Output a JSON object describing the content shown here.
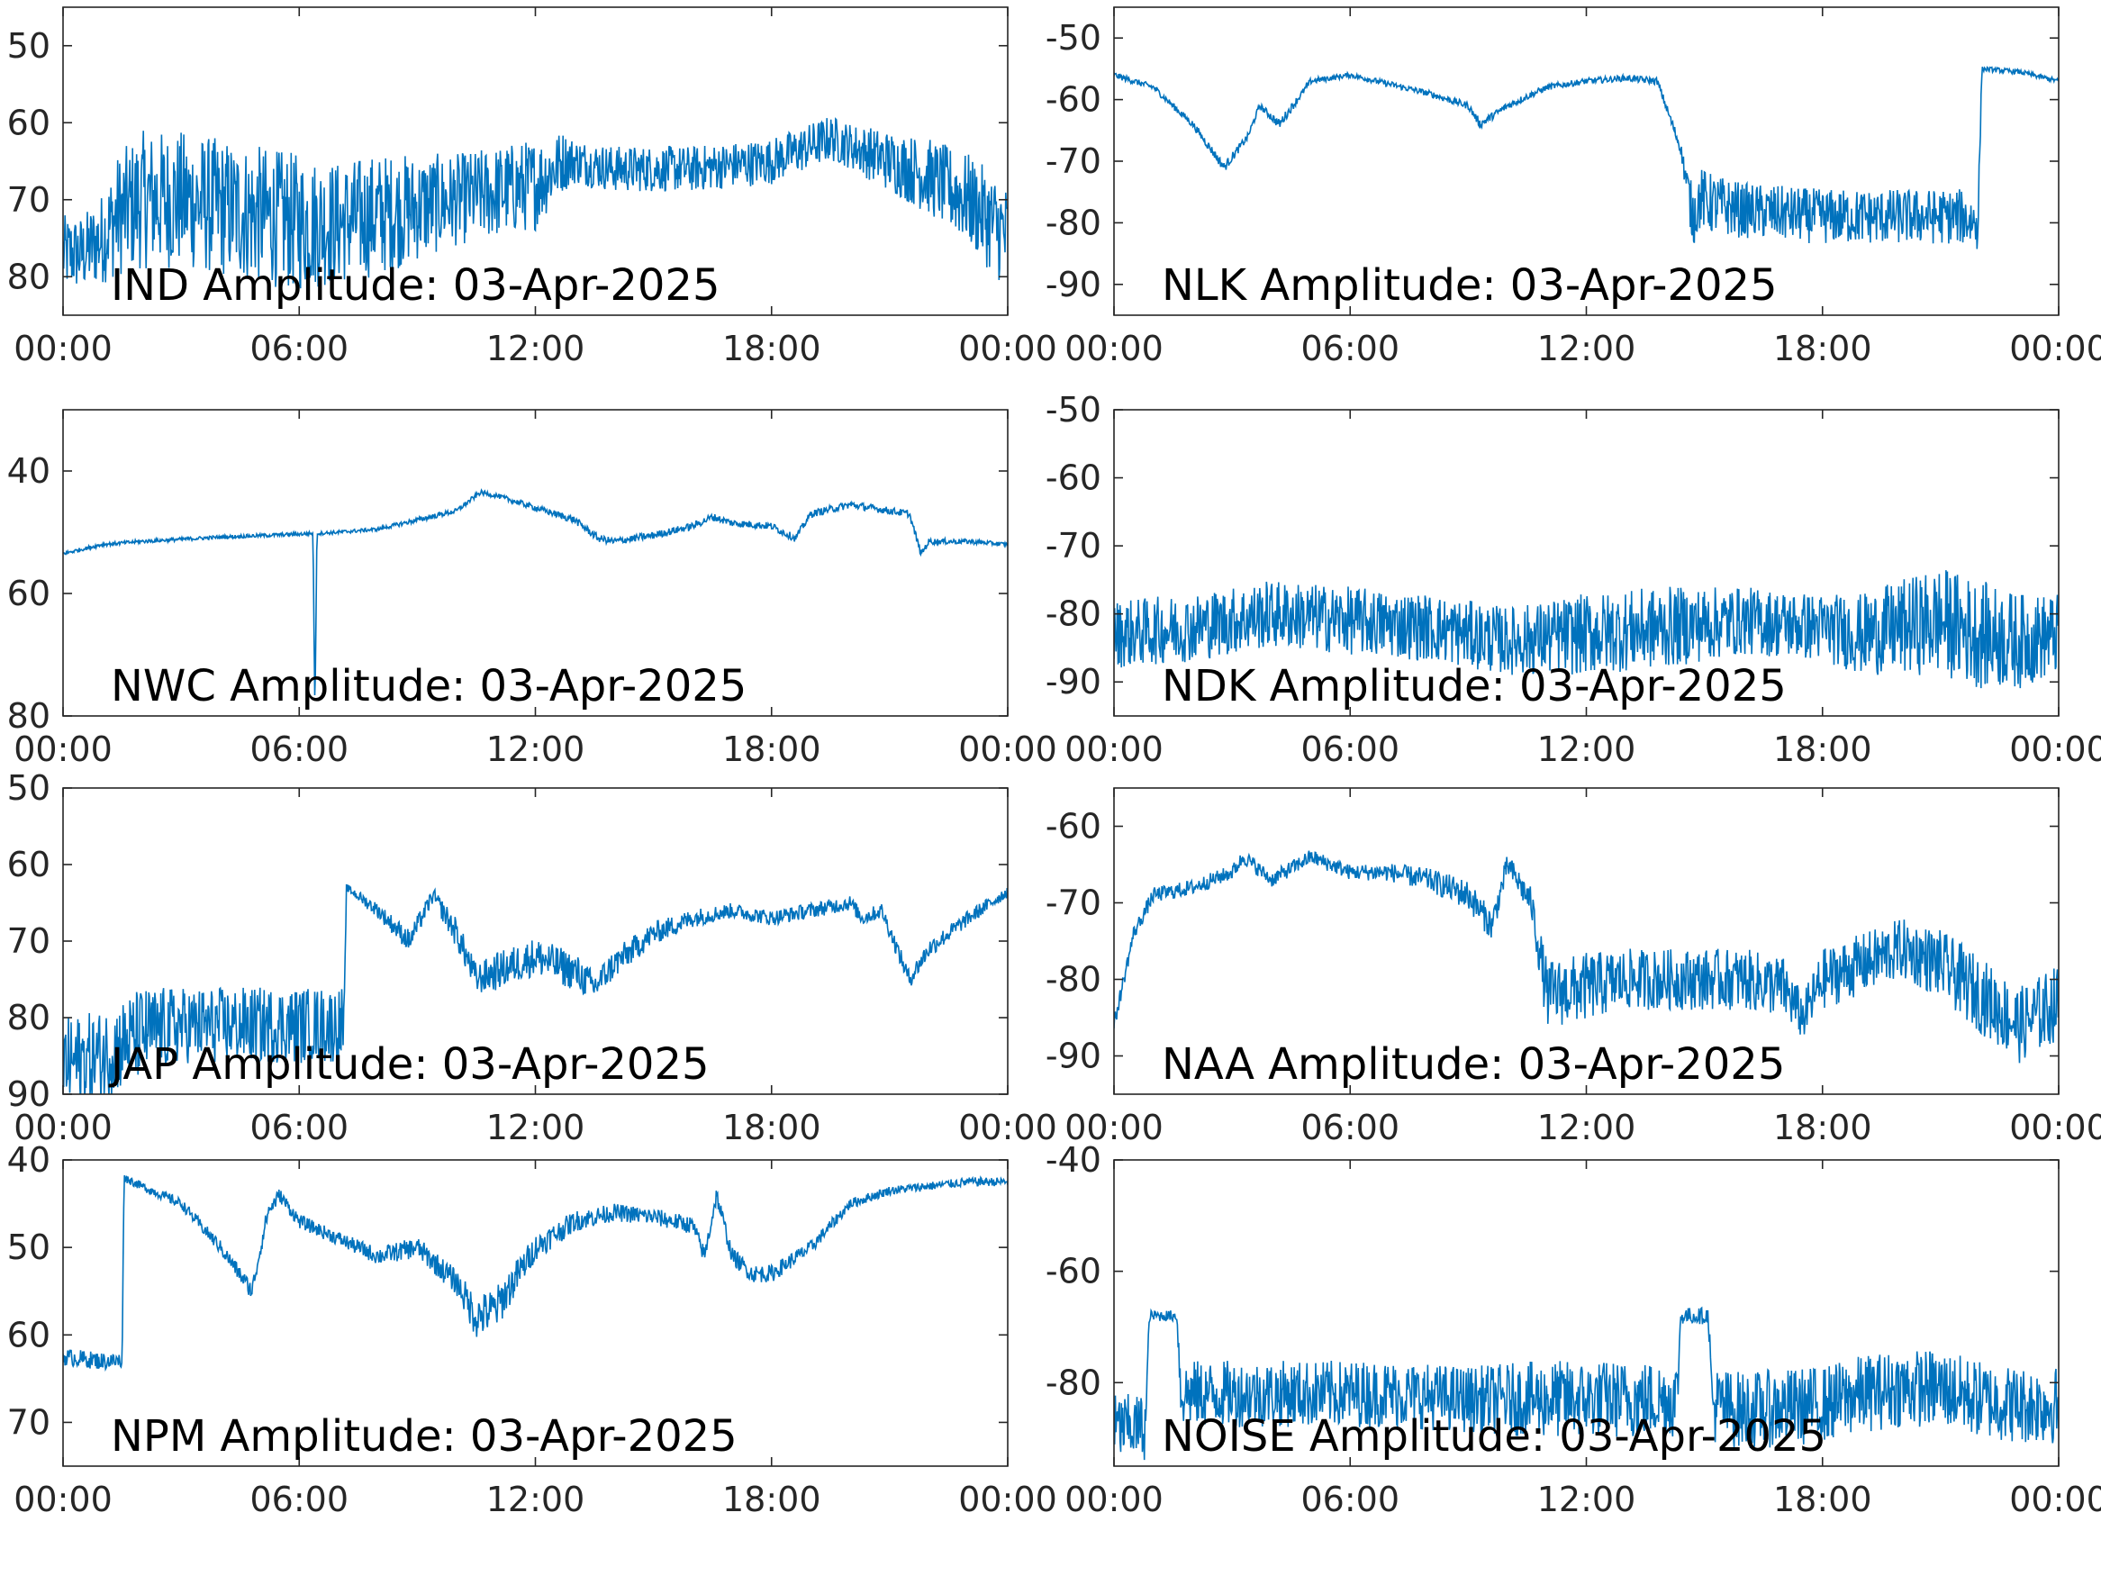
{
  "figure": {
    "line_color": "#0072bd",
    "axis_color": "#262626",
    "label_color": "#000000"
  },
  "chart_data": [
    {
      "type": "line",
      "panel": "IND",
      "title": "IND Amplitude: 03-Apr-2025",
      "x_ticks": [
        "00:00",
        "06:00",
        "12:00",
        "18:00",
        "00:00"
      ],
      "y_ticks": [
        "50",
        "60",
        "70",
        "80"
      ],
      "y_tick_values": [
        -50,
        -60,
        -70,
        -80
      ],
      "ylim": [
        -85,
        -45
      ],
      "series": [
        {
          "x_hours": [
            0,
            0.5,
            1,
            1.4,
            2,
            3,
            4,
            5,
            6,
            7,
            8,
            9,
            10,
            11,
            12,
            12.7,
            13,
            14,
            15,
            16,
            17,
            18,
            19,
            19.5,
            20,
            21,
            22,
            23,
            24
          ],
          "values": [
            -77,
            -77,
            -75,
            -72,
            -70,
            -70,
            -71,
            -72,
            -73,
            -73,
            -72,
            -71,
            -70,
            -69,
            -68,
            -65,
            -65,
            -66,
            -66,
            -66,
            -65.5,
            -65,
            -63,
            -62,
            -63,
            -65,
            -67,
            -70,
            -75
          ],
          "noise_amplitude": [
            5,
            5,
            6,
            8,
            9,
            9,
            9,
            9,
            9,
            8,
            8,
            7,
            6,
            6,
            6,
            4,
            3,
            3,
            3,
            3,
            3,
            3,
            3,
            3,
            3,
            4,
            5,
            6,
            7
          ]
        }
      ]
    },
    {
      "type": "line",
      "panel": "NLK",
      "title": "NLK Amplitude: 03-Apr-2025",
      "x_ticks": [
        "00:00",
        "06:00",
        "12:00",
        "18:00",
        "00:00"
      ],
      "y_ticks": [
        "-50",
        "-60",
        "-70",
        "-80",
        "-90"
      ],
      "y_tick_values": [
        -50,
        -60,
        -70,
        -80,
        -90
      ],
      "ylim": [
        -95,
        -45
      ],
      "series": [
        {
          "x_hours": [
            0,
            1,
            2,
            2.8,
            3.4,
            3.7,
            4.2,
            5,
            6,
            7,
            8,
            9,
            9.3,
            10,
            11,
            12,
            13,
            13.8,
            14.4,
            14.7,
            14.9,
            15.2,
            16,
            18,
            20,
            21.5,
            21.95,
            22.05,
            23,
            24
          ],
          "values": [
            -56,
            -58,
            -64,
            -71,
            -66,
            -61,
            -64,
            -57,
            -56,
            -57.5,
            -59,
            -61,
            -64,
            -61,
            -58,
            -57,
            -56.5,
            -57,
            -68,
            -79,
            -76,
            -77,
            -78,
            -79,
            -79,
            -79,
            -80,
            -55,
            -55.5,
            -57
          ],
          "noise_amplitude": [
            0.5,
            0.5,
            0.6,
            0.8,
            0.6,
            0.5,
            0.8,
            0.5,
            0.4,
            0.5,
            0.5,
            0.6,
            0.7,
            0.6,
            0.5,
            0.5,
            0.5,
            0.6,
            1,
            5,
            5,
            5,
            4.5,
            4.5,
            4.5,
            4.5,
            4.5,
            0.4,
            0.4,
            0.4
          ]
        }
      ]
    },
    {
      "type": "line",
      "panel": "NWC",
      "title": "NWC Amplitude: 03-Apr-2025",
      "x_ticks": [
        "00:00",
        "06:00",
        "12:00",
        "18:00",
        "00:00"
      ],
      "y_ticks": [
        "40",
        "60",
        "80"
      ],
      "y_tick_values": [
        -40,
        -60,
        -80
      ],
      "ylim": [
        -80,
        -30
      ],
      "series": [
        {
          "x_hours": [
            0,
            1,
            2,
            4,
            6,
            6.35,
            6.4,
            6.45,
            7,
            8,
            9,
            10,
            10.6,
            11,
            12,
            13,
            13.6,
            14,
            15,
            16,
            16.5,
            17,
            18,
            18.6,
            19,
            20,
            21,
            21.5,
            21.8,
            22,
            23,
            24
          ],
          "values": [
            -53.5,
            -52,
            -51.5,
            -50.8,
            -50.3,
            -50.2,
            -80,
            -50.2,
            -50,
            -49.5,
            -48,
            -46.5,
            -43.5,
            -44,
            -46,
            -48,
            -51,
            -51.5,
            -50.5,
            -49,
            -47.5,
            -48.5,
            -49,
            -51,
            -47,
            -45.5,
            -46.5,
            -47,
            -53.5,
            -51.5,
            -51.5,
            -52
          ],
          "noise_amplitude": [
            0.3,
            0.3,
            0.3,
            0.3,
            0.3,
            0.3,
            0,
            0.3,
            0.3,
            0.3,
            0.4,
            0.4,
            0.4,
            0.4,
            0.5,
            0.6,
            0.6,
            0.6,
            0.6,
            0.6,
            0.6,
            0.6,
            0.6,
            0.6,
            0.6,
            0.6,
            0.6,
            0.6,
            0.6,
            0.5,
            0.4,
            0.3
          ]
        }
      ]
    },
    {
      "type": "line",
      "panel": "NDK",
      "title": "NDK Amplitude: 03-Apr-2025",
      "x_ticks": [
        "00:00",
        "06:00",
        "12:00",
        "18:00",
        "00:00"
      ],
      "y_ticks": [
        "-50",
        "-60",
        "-70",
        "-80",
        "-90"
      ],
      "y_tick_values": [
        -50,
        -60,
        -70,
        -80,
        -90
      ],
      "ylim": [
        -95,
        -50
      ],
      "series": [
        {
          "x_hours": [
            0,
            2,
            4,
            6,
            8,
            10,
            12,
            14,
            16,
            18,
            19,
            20,
            21,
            22,
            23,
            24
          ],
          "values": [
            -83,
            -82,
            -80,
            -81,
            -82,
            -84,
            -83,
            -82,
            -81,
            -82,
            -83,
            -82,
            -81,
            -83,
            -84,
            -83
          ],
          "noise_amplitude": [
            5,
            5,
            5,
            5,
            5,
            5,
            6,
            6,
            5,
            5,
            6,
            7,
            8,
            8,
            7,
            6
          ]
        }
      ]
    },
    {
      "type": "line",
      "panel": "JAP",
      "title": "JAP Amplitude: 03-Apr-2025",
      "x_ticks": [
        "00:00",
        "06:00",
        "12:00",
        "18:00",
        "00:00"
      ],
      "y_ticks": [
        "50",
        "60",
        "70",
        "80",
        "90"
      ],
      "y_tick_values": [
        -50,
        -60,
        -70,
        -80,
        -90
      ],
      "ylim": [
        -90,
        -50
      ],
      "series": [
        {
          "x_hours": [
            0,
            1,
            2,
            3,
            4,
            5,
            6,
            7.15,
            7.2,
            8,
            8.8,
            9.4,
            10,
            10.5,
            11,
            12,
            13,
            13.5,
            14,
            15,
            16,
            17,
            18,
            19,
            20,
            20.3,
            20.8,
            21.5,
            22,
            23,
            24
          ],
          "values": [
            -86,
            -85,
            -82,
            -81,
            -81,
            -81,
            -81,
            -81,
            -63,
            -66,
            -70,
            -64,
            -69,
            -75,
            -74,
            -72,
            -74,
            -76,
            -73,
            -69,
            -67,
            -66,
            -67,
            -66,
            -65,
            -67,
            -66,
            -75,
            -71,
            -67,
            -63.5
          ],
          "noise_amplitude": [
            6,
            6,
            6,
            5,
            5,
            5,
            5,
            5,
            0.5,
            1,
            1.5,
            1,
            2,
            2,
            2.5,
            2.5,
            2.5,
            2,
            2,
            1.5,
            1.2,
            1,
            1,
            1,
            1,
            1,
            1,
            1.2,
            1.2,
            1,
            0.8
          ]
        }
      ]
    },
    {
      "type": "line",
      "panel": "NAA",
      "title": "NAA Amplitude: 03-Apr-2025",
      "x_ticks": [
        "00:00",
        "06:00",
        "12:00",
        "18:00",
        "00:00"
      ],
      "y_ticks": [
        "-60",
        "-70",
        "-80",
        "-90"
      ],
      "y_tick_values": [
        -60,
        -70,
        -80,
        -90
      ],
      "ylim": [
        -95,
        -55
      ],
      "series": [
        {
          "x_hours": [
            0,
            0.5,
            1,
            2,
            3,
            3.3,
            4,
            5,
            6,
            7,
            8,
            9,
            9.6,
            10,
            10.6,
            11,
            12,
            13,
            14,
            15,
            16,
            17,
            17.5,
            18,
            19,
            20,
            21,
            22,
            23,
            24
          ],
          "values": [
            -86,
            -74,
            -69,
            -68,
            -66,
            -64,
            -67,
            -64,
            -66,
            -66,
            -67,
            -69,
            -73,
            -65,
            -70,
            -82,
            -81,
            -80,
            -80,
            -80,
            -80,
            -81,
            -85,
            -80,
            -78,
            -76,
            -78,
            -82,
            -86,
            -83
          ],
          "noise_amplitude": [
            1,
            1,
            1,
            1,
            1,
            1,
            1,
            1,
            1,
            1.2,
            1.5,
            2,
            2,
            1.5,
            2,
            4.5,
            4.5,
            4,
            4,
            4,
            4,
            4,
            3,
            4,
            4,
            4,
            4.5,
            5,
            5,
            5
          ]
        }
      ]
    },
    {
      "type": "line",
      "panel": "NPM",
      "title": "NPM Amplitude: 03-Apr-2025",
      "x_ticks": [
        "00:00",
        "06:00",
        "12:00",
        "18:00",
        "00:00"
      ],
      "y_ticks": [
        "40",
        "50",
        "60",
        "70"
      ],
      "y_tick_values": [
        -40,
        -50,
        -60,
        -70
      ],
      "ylim": [
        -75,
        -40
      ],
      "series": [
        {
          "x_hours": [
            0,
            1,
            1.5,
            1.55,
            2,
            3,
            4,
            4.8,
            5.2,
            5.5,
            6,
            7,
            8,
            9,
            10,
            10.5,
            11,
            12,
            13,
            14,
            15,
            16,
            16.3,
            16.6,
            17,
            17.5,
            18,
            19,
            20,
            21,
            22,
            23,
            24
          ],
          "values": [
            -62.5,
            -63,
            -63,
            -42,
            -43,
            -45,
            -50,
            -55,
            -46,
            -44,
            -47,
            -49,
            -51,
            -50,
            -54,
            -58,
            -57,
            -50,
            -47,
            -46,
            -46.5,
            -47.5,
            -51,
            -44,
            -51,
            -53,
            -53,
            -50,
            -45,
            -43.5,
            -43,
            -42.5,
            -42.5
          ],
          "noise_amplitude": [
            1,
            1,
            1,
            0.5,
            0.5,
            0.6,
            0.8,
            1,
            1,
            0.8,
            0.8,
            0.8,
            1,
            1.2,
            1.5,
            2.5,
            2.5,
            1.5,
            1.2,
            1,
            1,
            1,
            1,
            1,
            1,
            1,
            1,
            0.8,
            0.6,
            0.5,
            0.5,
            0.5,
            0.5
          ]
        }
      ]
    },
    {
      "type": "line",
      "panel": "NOISE",
      "title": "NOISE Amplitude: 03-Apr-2025",
      "x_ticks": [
        "00:00",
        "06:00",
        "12:00",
        "18:00",
        "00:00"
      ],
      "y_ticks": [
        "-40",
        "-60",
        "-80"
      ],
      "y_tick_values": [
        -40,
        -60,
        -80
      ],
      "ylim": [
        -95,
        -40
      ],
      "series": [
        {
          "x_hours": [
            0,
            0.8,
            0.9,
            1.6,
            1.7,
            3,
            5,
            7,
            9,
            11,
            13,
            14.3,
            14.4,
            15.1,
            15.2,
            16,
            18,
            19,
            20,
            21,
            22,
            23,
            24
          ],
          "values": [
            -88,
            -88,
            -68,
            -68,
            -82,
            -82,
            -82,
            -82,
            -83,
            -83,
            -83,
            -83,
            -68,
            -68,
            -84,
            -85,
            -84,
            -82,
            -81,
            -81,
            -83,
            -84,
            -84
          ],
          "noise_amplitude": [
            6,
            6,
            1,
            1,
            6,
            6,
            6,
            6,
            6,
            7,
            7,
            7,
            1.5,
            1.5,
            7,
            7,
            7,
            7,
            7,
            7,
            7,
            7,
            7
          ]
        }
      ]
    }
  ]
}
